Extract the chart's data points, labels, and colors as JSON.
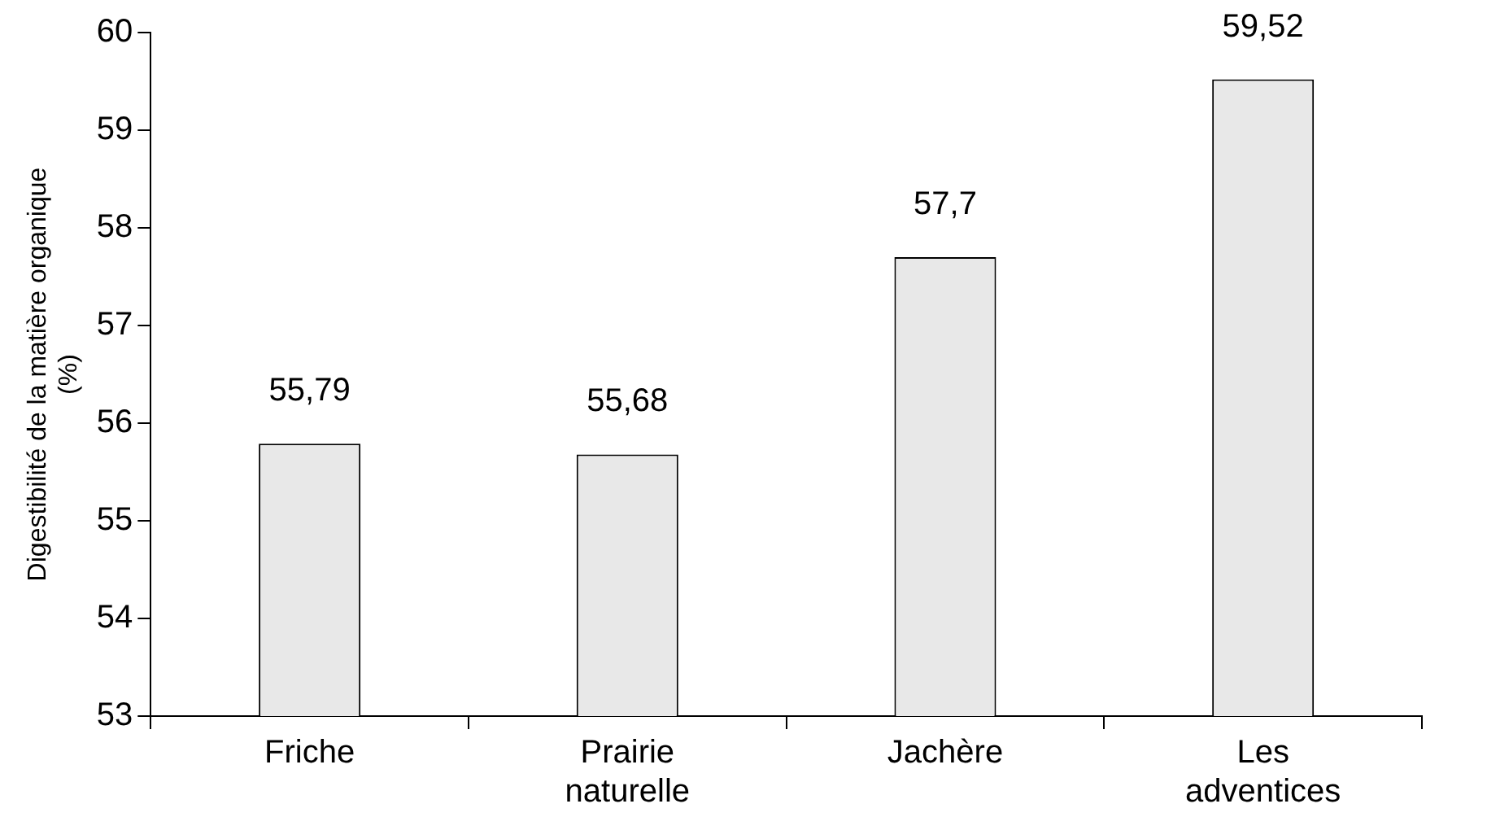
{
  "chart_data": {
    "type": "bar",
    "ylabel": "Digestibilité de la matière organique (%)",
    "categories": [
      "Friche",
      "Prairie naturelle",
      "Jachère",
      "Les adventices"
    ],
    "values": [
      55.79,
      55.68,
      57.7,
      59.52
    ],
    "value_labels": [
      "55,79",
      "55,68",
      "57,7",
      "59,52"
    ],
    "color": "#e8e8e8",
    "ylim": [
      53,
      60
    ],
    "yticks": [
      53,
      54,
      55,
      56,
      57,
      58,
      59,
      60
    ],
    "grid": false,
    "legend": false
  }
}
